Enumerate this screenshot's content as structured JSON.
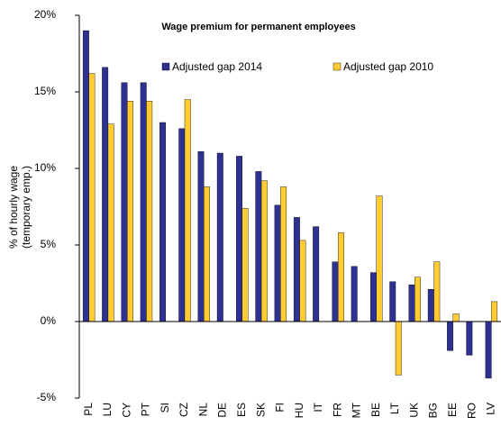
{
  "chart_data": {
    "type": "bar",
    "title": "Wage premium for permanent employees",
    "y_label": [
      "% of hourly wage",
      "(temporary emp.)"
    ],
    "categories": [
      "PL",
      "LU",
      "CY",
      "PT",
      "SI",
      "CZ",
      "NL",
      "DE",
      "ES",
      "SK",
      "FI",
      "HU",
      "IT",
      "FR",
      "MT",
      "BE",
      "LT",
      "UK",
      "BG",
      "EE",
      "RO",
      "LV"
    ],
    "series": [
      {
        "name": "Adjusted gap 2014",
        "color": "#2e3192",
        "values": [
          19.0,
          16.6,
          15.6,
          15.6,
          13.0,
          12.6,
          11.1,
          11.0,
          10.8,
          9.8,
          7.6,
          6.8,
          6.2,
          3.9,
          3.6,
          3.2,
          2.6,
          2.4,
          2.1,
          -1.9,
          -2.2,
          -3.7
        ]
      },
      {
        "name": "Adjusted gap 2010",
        "color": "#ffcc33",
        "values": [
          16.2,
          12.9,
          14.4,
          14.4,
          null,
          14.5,
          8.8,
          null,
          7.4,
          9.2,
          8.8,
          5.3,
          null,
          5.8,
          null,
          8.2,
          -3.5,
          2.9,
          3.9,
          0.5,
          null,
          1.3
        ]
      }
    ],
    "ylim": [
      -5,
      20
    ],
    "yticks": [
      {
        "value": -5,
        "label": "-5%"
      },
      {
        "value": 0,
        "label": "0%"
      },
      {
        "value": 5,
        "label": "5%"
      },
      {
        "value": 10,
        "label": "10%"
      },
      {
        "value": 15,
        "label": "15%"
      },
      {
        "value": 20,
        "label": "20%"
      }
    ],
    "legend": "top",
    "grid": false
  }
}
